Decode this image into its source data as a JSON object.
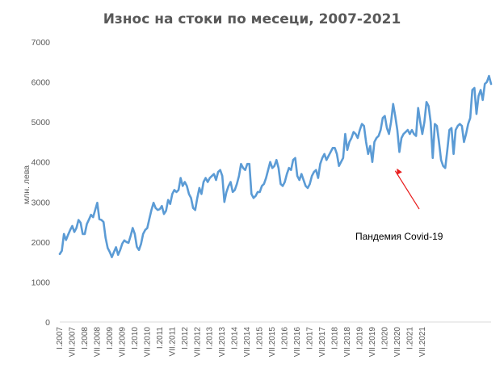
{
  "chart_data": {
    "type": "line",
    "title": "Износ на стоки по месеци, 2007-2021",
    "xlabel": "",
    "ylabel": "млн. лева",
    "ylim": [
      0,
      7000
    ],
    "yticks": [
      0,
      1000,
      2000,
      3000,
      4000,
      5000,
      6000,
      7000
    ],
    "grid": false,
    "legend": "none",
    "line_color": "#5B9BD5",
    "x_tick_labels": [
      "I.2007",
      "VII.2007",
      "I.2008",
      "VII.2008",
      "I.2009",
      "VII.2009",
      "I.2010",
      "VII.2010",
      "I.2011",
      "VII.2011",
      "I.2012",
      "VII.2012",
      "I.2013",
      "VII.2013",
      "I.2014",
      "VII.2014",
      "I.2015",
      "VII.2015",
      "I.2016",
      "VII.2016",
      "I.2017",
      "VII.2017",
      "I.2018",
      "VII.2018",
      "I.2019",
      "VII.2019",
      "I.2020",
      "VII.2020",
      "I.2021",
      "VII.2021"
    ],
    "series": [
      {
        "values": [
          1700,
          1780,
          2200,
          2050,
          2180,
          2300,
          2400,
          2250,
          2350,
          2550,
          2480,
          2200,
          2200,
          2450,
          2560,
          2680,
          2620,
          2800,
          2980,
          2570,
          2550,
          2500,
          2100,
          1850,
          1750,
          1620,
          1750,
          1870,
          1680,
          1800,
          1960,
          2040,
          2000,
          1980,
          2150,
          2350,
          2200,
          1880,
          1800,
          1950,
          2200,
          2300,
          2350,
          2580,
          2800,
          2980,
          2850,
          2800,
          2820,
          2900,
          2700,
          2780,
          3050,
          2950,
          3200,
          3300,
          3250,
          3300,
          3600,
          3400,
          3500,
          3400,
          3200,
          3100,
          2850,
          2800,
          3100,
          3350,
          3200,
          3500,
          3600,
          3500,
          3600,
          3650,
          3700,
          3550,
          3750,
          3800,
          3650,
          3000,
          3250,
          3400,
          3500,
          3250,
          3300,
          3450,
          3650,
          3950,
          3850,
          3800,
          3950,
          3950,
          3200,
          3100,
          3150,
          3250,
          3250,
          3400,
          3450,
          3600,
          3800,
          4000,
          3850,
          3900,
          4050,
          3850,
          3450,
          3400,
          3500,
          3700,
          3850,
          3800,
          4050,
          4100,
          3650,
          3550,
          3700,
          3550,
          3400,
          3350,
          3450,
          3650,
          3750,
          3800,
          3600,
          3950,
          4100,
          4200,
          4050,
          4150,
          4250,
          4350,
          4350,
          4200,
          3900,
          4000,
          4100,
          4700,
          4300,
          4500,
          4600,
          4750,
          4700,
          4600,
          4800,
          4950,
          4900,
          4500,
          4200,
          4400,
          4000,
          4500,
          4600,
          4650,
          4800,
          5100,
          5150,
          4850,
          4700,
          5000,
          5450,
          5150,
          4800,
          4250,
          4600,
          4700,
          4750,
          4800,
          4700,
          4800,
          4700,
          4650,
          5350,
          5000,
          4700,
          5000,
          5500,
          5400,
          5000,
          4100,
          4950,
          4900,
          4500,
          4050,
          3900,
          3850,
          4300,
          4800,
          4850,
          4200,
          4800,
          4900,
          4950,
          4900,
          4500,
          4700,
          4950,
          5100,
          5800,
          5850,
          5200,
          5650,
          5800,
          5550,
          5950,
          6000,
          6150,
          5950
        ]
      }
    ],
    "annotations": [
      {
        "text": "Пандемия Covid-19",
        "arrow_to_x_index": 161,
        "arrow_to_y": 4000,
        "arrow_color": "#E81C1C"
      }
    ]
  }
}
